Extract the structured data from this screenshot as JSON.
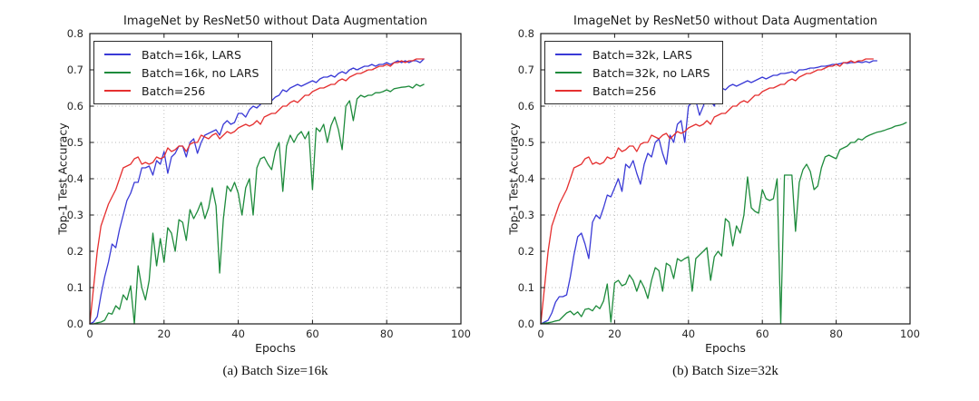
{
  "figure": {
    "background": "#ffffff",
    "grid_color": "#b8b8b8",
    "spine_color": "#1a1a1a",
    "tick_label_color": "#262626"
  },
  "chart_data": [
    {
      "type": "line",
      "title": "ImageNet by ResNet50 without Data Augmentation",
      "xlabel": "Epochs",
      "ylabel": "Top-1 Test Accuracy",
      "caption": "(a) Batch Size=16k",
      "xlim": [
        0,
        100
      ],
      "ylim": [
        0.0,
        0.8
      ],
      "xticks": [
        0,
        20,
        40,
        60,
        80,
        100
      ],
      "yticks": [
        "0.0",
        "0.1",
        "0.2",
        "0.3",
        "0.4",
        "0.5",
        "0.6",
        "0.7",
        "0.8"
      ],
      "grid": "dotted",
      "legend_position": "upper left",
      "x_start": 0,
      "x_step": 1,
      "series": [
        {
          "name": "Batch=16k, LARS",
          "color": "#3a3ad6",
          "values": [
            0.0,
            0.005,
            0.02,
            0.08,
            0.13,
            0.17,
            0.22,
            0.21,
            0.26,
            0.3,
            0.34,
            0.36,
            0.39,
            0.39,
            0.43,
            0.43,
            0.435,
            0.41,
            0.45,
            0.44,
            0.475,
            0.415,
            0.46,
            0.47,
            0.49,
            0.49,
            0.46,
            0.5,
            0.51,
            0.47,
            0.5,
            0.52,
            0.525,
            0.53,
            0.535,
            0.52,
            0.55,
            0.56,
            0.55,
            0.555,
            0.58,
            0.58,
            0.57,
            0.59,
            0.6,
            0.595,
            0.605,
            0.62,
            0.62,
            0.615,
            0.625,
            0.63,
            0.645,
            0.64,
            0.65,
            0.655,
            0.66,
            0.655,
            0.66,
            0.665,
            0.67,
            0.665,
            0.675,
            0.68,
            0.68,
            0.685,
            0.68,
            0.69,
            0.695,
            0.69,
            0.7,
            0.705,
            0.7,
            0.705,
            0.71,
            0.71,
            0.715,
            0.71,
            0.715,
            0.715,
            0.72,
            0.715,
            0.72,
            0.725,
            0.72,
            0.725,
            0.72,
            0.725,
            0.725,
            0.72,
            0.73
          ]
        },
        {
          "name": "Batch=16k, no LARS",
          "color": "#1e8b3c",
          "values": [
            0.0,
            0.0,
            0.003,
            0.005,
            0.01,
            0.03,
            0.027,
            0.05,
            0.04,
            0.08,
            0.066,
            0.105,
            0.0,
            0.16,
            0.1,
            0.066,
            0.12,
            0.25,
            0.16,
            0.235,
            0.17,
            0.265,
            0.25,
            0.2,
            0.287,
            0.28,
            0.23,
            0.315,
            0.29,
            0.31,
            0.335,
            0.29,
            0.32,
            0.375,
            0.325,
            0.14,
            0.29,
            0.38,
            0.365,
            0.39,
            0.36,
            0.3,
            0.375,
            0.4,
            0.3,
            0.43,
            0.455,
            0.46,
            0.44,
            0.425,
            0.475,
            0.5,
            0.365,
            0.49,
            0.52,
            0.5,
            0.52,
            0.53,
            0.51,
            0.53,
            0.37,
            0.54,
            0.53,
            0.55,
            0.5,
            0.547,
            0.57,
            0.535,
            0.48,
            0.6,
            0.615,
            0.56,
            0.62,
            0.63,
            0.625,
            0.63,
            0.63,
            0.637,
            0.637,
            0.64,
            0.645,
            0.64,
            0.648,
            0.65,
            0.652,
            0.653,
            0.655,
            0.65,
            0.66,
            0.655,
            0.66
          ]
        },
        {
          "name": "Batch=256",
          "color": "#e53030",
          "values": [
            0.0,
            0.1,
            0.2,
            0.27,
            0.3,
            0.33,
            0.35,
            0.37,
            0.4,
            0.43,
            0.435,
            0.44,
            0.455,
            0.46,
            0.44,
            0.445,
            0.44,
            0.445,
            0.46,
            0.455,
            0.46,
            0.485,
            0.475,
            0.48,
            0.49,
            0.49,
            0.475,
            0.495,
            0.5,
            0.5,
            0.52,
            0.515,
            0.51,
            0.52,
            0.525,
            0.51,
            0.52,
            0.53,
            0.525,
            0.53,
            0.54,
            0.545,
            0.55,
            0.545,
            0.55,
            0.56,
            0.55,
            0.57,
            0.575,
            0.58,
            0.58,
            0.59,
            0.6,
            0.6,
            0.61,
            0.615,
            0.61,
            0.62,
            0.63,
            0.63,
            0.64,
            0.645,
            0.65,
            0.65,
            0.655,
            0.66,
            0.66,
            0.67,
            0.675,
            0.67,
            0.68,
            0.685,
            0.69,
            0.69,
            0.695,
            0.7,
            0.7,
            0.705,
            0.71,
            0.71,
            0.715,
            0.71,
            0.72,
            0.72,
            0.725,
            0.72,
            0.725,
            0.725,
            0.73,
            0.73,
            0.73
          ]
        }
      ]
    },
    {
      "type": "line",
      "title": "ImageNet by ResNet50 without Data Augmentation",
      "xlabel": "Epochs",
      "ylabel": "Top-1 Test Accuracy",
      "caption": "(b) Batch Size=32k",
      "xlim": [
        0,
        100
      ],
      "ylim": [
        0.0,
        0.8
      ],
      "xticks": [
        0,
        20,
        40,
        60,
        80,
        100
      ],
      "yticks": [
        "0.0",
        "0.1",
        "0.2",
        "0.3",
        "0.4",
        "0.5",
        "0.6",
        "0.7",
        "0.8"
      ],
      "grid": "dotted",
      "legend_position": "upper left",
      "x_start": 0,
      "x_step": 1,
      "series": [
        {
          "name": "Batch=32k, LARS",
          "color": "#3a3ad6",
          "values": [
            0.0,
            0.005,
            0.01,
            0.03,
            0.06,
            0.075,
            0.075,
            0.08,
            0.13,
            0.19,
            0.24,
            0.25,
            0.22,
            0.18,
            0.28,
            0.3,
            0.29,
            0.32,
            0.355,
            0.35,
            0.375,
            0.4,
            0.365,
            0.44,
            0.43,
            0.45,
            0.415,
            0.385,
            0.44,
            0.47,
            0.46,
            0.5,
            0.51,
            0.47,
            0.44,
            0.52,
            0.5,
            0.55,
            0.56,
            0.5,
            0.6,
            0.61,
            0.615,
            0.575,
            0.6,
            0.63,
            0.615,
            0.6,
            0.645,
            0.65,
            0.645,
            0.655,
            0.66,
            0.655,
            0.66,
            0.665,
            0.67,
            0.665,
            0.67,
            0.675,
            0.68,
            0.675,
            0.68,
            0.685,
            0.685,
            0.69,
            0.69,
            0.692,
            0.695,
            0.69,
            0.7,
            0.7,
            0.702,
            0.705,
            0.705,
            0.707,
            0.71,
            0.71,
            0.712,
            0.715,
            0.715,
            0.717,
            0.72,
            0.718,
            0.72,
            0.72,
            0.722,
            0.72,
            0.723,
            0.72,
            0.725,
            0.725
          ]
        },
        {
          "name": "Batch=32k, no LARS",
          "color": "#1e8b3c",
          "values": [
            0.0,
            0.002,
            0.003,
            0.005,
            0.008,
            0.01,
            0.02,
            0.03,
            0.035,
            0.025,
            0.033,
            0.02,
            0.04,
            0.042,
            0.036,
            0.05,
            0.042,
            0.063,
            0.11,
            0.005,
            0.113,
            0.12,
            0.105,
            0.11,
            0.135,
            0.12,
            0.09,
            0.12,
            0.1,
            0.07,
            0.12,
            0.155,
            0.147,
            0.09,
            0.167,
            0.16,
            0.125,
            0.18,
            0.173,
            0.18,
            0.185,
            0.09,
            0.18,
            0.19,
            0.2,
            0.21,
            0.12,
            0.185,
            0.2,
            0.187,
            0.29,
            0.28,
            0.215,
            0.27,
            0.25,
            0.3,
            0.405,
            0.32,
            0.31,
            0.305,
            0.37,
            0.345,
            0.34,
            0.345,
            0.4,
            0.0,
            0.41,
            0.41,
            0.41,
            0.255,
            0.39,
            0.425,
            0.44,
            0.42,
            0.37,
            0.38,
            0.43,
            0.46,
            0.465,
            0.46,
            0.455,
            0.48,
            0.485,
            0.49,
            0.5,
            0.5,
            0.51,
            0.507,
            0.515,
            0.52,
            0.524,
            0.528,
            0.53,
            0.533,
            0.537,
            0.54,
            0.545,
            0.547,
            0.55,
            0.555
          ]
        },
        {
          "name": "Batch=256",
          "color": "#e53030",
          "values": [
            0.0,
            0.1,
            0.2,
            0.27,
            0.3,
            0.33,
            0.35,
            0.37,
            0.4,
            0.43,
            0.435,
            0.44,
            0.455,
            0.46,
            0.44,
            0.445,
            0.44,
            0.445,
            0.46,
            0.455,
            0.46,
            0.485,
            0.475,
            0.48,
            0.49,
            0.49,
            0.475,
            0.495,
            0.5,
            0.5,
            0.52,
            0.515,
            0.51,
            0.52,
            0.525,
            0.51,
            0.52,
            0.53,
            0.525,
            0.53,
            0.54,
            0.545,
            0.55,
            0.545,
            0.55,
            0.56,
            0.55,
            0.57,
            0.575,
            0.58,
            0.58,
            0.59,
            0.6,
            0.6,
            0.61,
            0.615,
            0.61,
            0.62,
            0.63,
            0.63,
            0.64,
            0.645,
            0.65,
            0.65,
            0.655,
            0.66,
            0.66,
            0.67,
            0.675,
            0.67,
            0.68,
            0.685,
            0.69,
            0.69,
            0.695,
            0.7,
            0.7,
            0.705,
            0.71,
            0.71,
            0.715,
            0.71,
            0.72,
            0.72,
            0.725,
            0.72,
            0.725,
            0.725,
            0.73,
            0.73,
            0.73
          ]
        }
      ]
    }
  ]
}
